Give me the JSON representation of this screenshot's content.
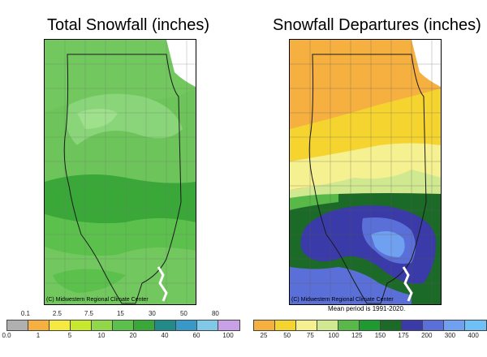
{
  "left_panel": {
    "title": "Total Snowfall (inches)",
    "credit": "(C) Midwestern Regional Climate Center",
    "legend": {
      "colors": [
        "#b0b0b0",
        "#f5b040",
        "#f5e840",
        "#c8e830",
        "#90d84a",
        "#5cc04c",
        "#3aa838",
        "#238a8a",
        "#3898c8",
        "#80c8e8",
        "#c8a0e8"
      ],
      "labels_top": [
        "0.1",
        "2.5",
        "7.5",
        "15",
        "30",
        "50",
        "80"
      ],
      "labels_bottom": [
        "0.0",
        "1",
        "5",
        "10",
        "20",
        "40",
        "60",
        "100"
      ]
    }
  },
  "right_panel": {
    "title": "Snowfall Departures (inches)",
    "credit": "(C) Midwestern Regional Climate Center",
    "note": "Mean period is 1991-2020.",
    "legend": {
      "colors": [
        "#f5b040",
        "#f5d430",
        "#f5f090",
        "#d0e890",
        "#58b848",
        "#1f9a30",
        "#1c6a28",
        "#3a3aa8",
        "#5a70d8",
        "#70a0f0",
        "#70c0f8"
      ],
      "labels": [
        "25",
        "50",
        "75",
        "100",
        "125",
        "150",
        "175",
        "200",
        "300",
        "400"
      ]
    }
  }
}
